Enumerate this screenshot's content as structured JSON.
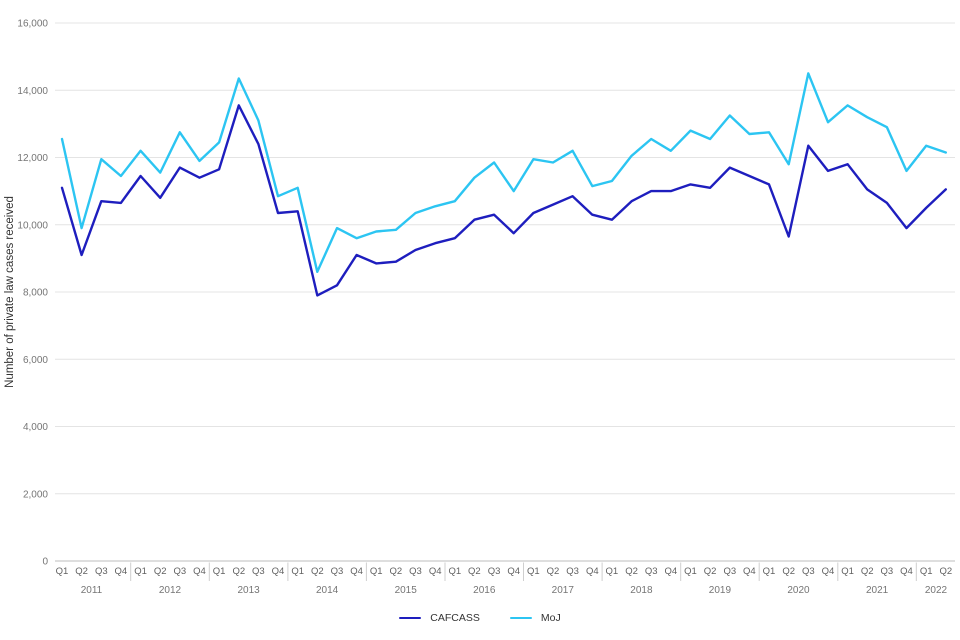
{
  "colors": {
    "cafcass_line": "#1E1EBE",
    "moj_line": "#2CC5F2",
    "gridline": "#E4E4E4",
    "baseline": "#BDBDBD",
    "separator": "#CFCFCF",
    "axis_text": "#757575",
    "quarter_text": "#616161",
    "legend_text": "#333333",
    "background": "#FFFFFF"
  },
  "chart_data": {
    "type": "line",
    "title": "",
    "xlabel": "",
    "ylabel": "Number of private law cases received",
    "ylim": [
      0,
      16000
    ],
    "ytick_step": 2000,
    "ytick_labels": [
      "0",
      "2,000",
      "4,000",
      "6,000",
      "8,000",
      "10,000",
      "12,000",
      "14,000",
      "16,000"
    ],
    "grid": "horizontal",
    "legend_position": "bottom-center",
    "x_quarters": [
      "Q1",
      "Q2",
      "Q3",
      "Q4",
      "Q1",
      "Q2",
      "Q3",
      "Q4",
      "Q1",
      "Q2",
      "Q3",
      "Q4",
      "Q1",
      "Q2",
      "Q3",
      "Q4",
      "Q1",
      "Q2",
      "Q3",
      "Q4",
      "Q1",
      "Q2",
      "Q3",
      "Q4",
      "Q1",
      "Q2",
      "Q3",
      "Q4",
      "Q1",
      "Q2",
      "Q3",
      "Q4",
      "Q1",
      "Q2",
      "Q3",
      "Q4",
      "Q1",
      "Q2",
      "Q3",
      "Q4",
      "Q1",
      "Q2",
      "Q3",
      "Q4",
      "Q1",
      "Q2"
    ],
    "years": [
      {
        "year": "2011",
        "quarters": 4
      },
      {
        "year": "2012",
        "quarters": 4
      },
      {
        "year": "2013",
        "quarters": 4
      },
      {
        "year": "2014",
        "quarters": 4
      },
      {
        "year": "2015",
        "quarters": 4
      },
      {
        "year": "2016",
        "quarters": 4
      },
      {
        "year": "2017",
        "quarters": 4
      },
      {
        "year": "2018",
        "quarters": 4
      },
      {
        "year": "2019",
        "quarters": 4
      },
      {
        "year": "2020",
        "quarters": 4
      },
      {
        "year": "2021",
        "quarters": 4
      },
      {
        "year": "2022",
        "quarters": 2
      }
    ],
    "series": [
      {
        "name": "CAFCASS",
        "color": "#1E1EBE",
        "values": [
          11100,
          9100,
          10700,
          10650,
          11450,
          10800,
          11700,
          11400,
          11650,
          13550,
          12400,
          10350,
          10400,
          7900,
          8200,
          9100,
          8850,
          8900,
          9250,
          9450,
          9600,
          10150,
          10300,
          9750,
          10350,
          10600,
          10850,
          10300,
          10150,
          10700,
          11000,
          11000,
          11200,
          11100,
          11700,
          11450,
          11200,
          9650,
          12350,
          11600,
          11800,
          11050,
          10650,
          9900,
          10500,
          11050
        ]
      },
      {
        "name": "MoJ",
        "color": "#2CC5F2",
        "values": [
          12550,
          9900,
          11950,
          11450,
          12200,
          11550,
          12750,
          11900,
          12450,
          14350,
          13100,
          10850,
          11100,
          8600,
          9900,
          9600,
          9800,
          9850,
          10350,
          10550,
          10700,
          11400,
          11850,
          11000,
          11950,
          11850,
          12200,
          11150,
          11300,
          12050,
          12550,
          12200,
          12800,
          12550,
          13250,
          12700,
          12750,
          11800,
          14500,
          13050,
          13550,
          13200,
          12900,
          11600,
          12350,
          12150
        ]
      }
    ]
  }
}
